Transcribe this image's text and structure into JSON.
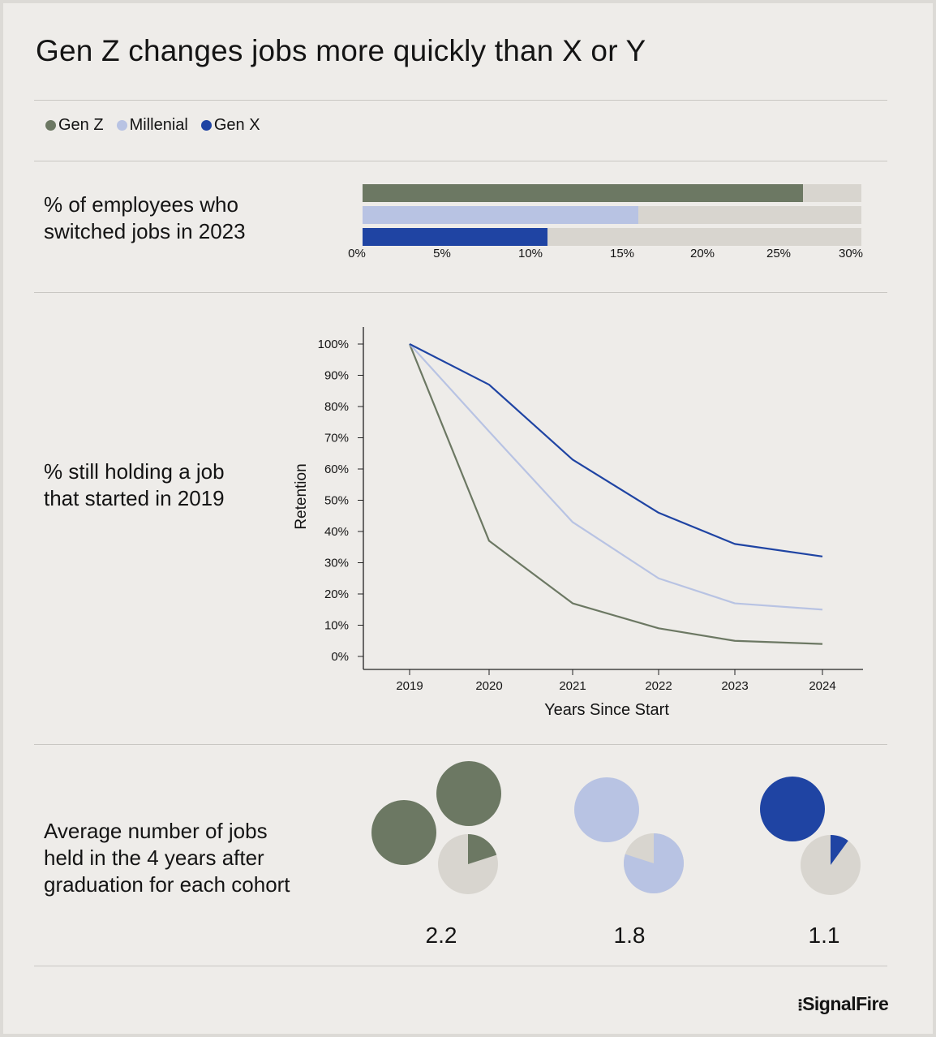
{
  "title": "Gen Z changes jobs more quickly than X or Y",
  "legend": [
    {
      "label": "Gen Z",
      "color": "#6c7863"
    },
    {
      "label": "Millenial",
      "color": "#b8c3e3"
    },
    {
      "label": "Gen X",
      "color": "#1f44a3"
    }
  ],
  "colors": {
    "track": "#d8d5cf",
    "pie_bg": "#d8d5cf"
  },
  "sections": {
    "switched_label": "% of employees who\nswitched jobs in 2023",
    "retention_label": "% still holding a job\nthat started in 2019",
    "jobs_label": "Average number of jobs\nheld in the 4 years after\ngraduation for each cohort"
  },
  "chart_data": [
    {
      "type": "bar",
      "orientation": "horizontal",
      "title": "% of employees who switched jobs in 2023",
      "categories": [
        "Gen Z",
        "Millenial",
        "Gen X"
      ],
      "values": [
        26.5,
        16.6,
        11.1
      ],
      "xlim": [
        0,
        30
      ],
      "x_ticks": [
        "0%",
        "5%",
        "10%",
        "15%",
        "20%",
        "25%",
        "30%"
      ]
    },
    {
      "type": "line",
      "title": "% still holding a job that started in 2019",
      "xlabel": "Years Since Start",
      "ylabel": "Retention",
      "x": [
        "2019",
        "2020",
        "2021",
        "2022",
        "2023",
        "2024"
      ],
      "ylim": [
        0,
        100
      ],
      "y_ticks": [
        "0%",
        "10%",
        "20%",
        "30%",
        "40%",
        "50%",
        "60%",
        "70%",
        "80%",
        "90%",
        "100%"
      ],
      "series": [
        {
          "name": "Gen Z",
          "values": [
            100,
            37,
            17,
            9,
            5,
            4
          ]
        },
        {
          "name": "Millenial",
          "values": [
            100,
            72,
            43,
            25,
            17,
            15
          ]
        },
        {
          "name": "Gen X",
          "values": [
            100,
            87,
            63,
            46,
            36,
            32
          ]
        }
      ]
    },
    {
      "type": "pie",
      "title": "Average number of jobs held in the 4 years after graduation for each cohort",
      "categories": [
        "Gen Z",
        "Millenial",
        "Gen X"
      ],
      "values": [
        2.2,
        1.8,
        1.1
      ],
      "labels": [
        "2.2",
        "1.8",
        "1.1"
      ]
    }
  ],
  "brand": "SignalFire"
}
